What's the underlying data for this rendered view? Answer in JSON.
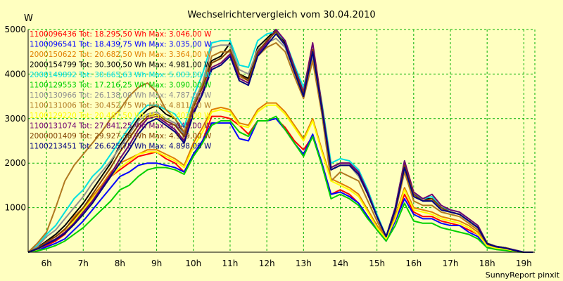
{
  "chart_data": {
    "type": "line",
    "title": "Wechselrichtervergleich vom 30.04.2010",
    "ylabel": "W",
    "xlabel": "",
    "footer": "SunnyReport pinxit",
    "ylim": [
      0,
      5000
    ],
    "xlim": [
      5.5,
      19.3
    ],
    "yticks": [
      1000,
      2000,
      3000,
      4000,
      5000
    ],
    "xticks": [
      {
        "v": 6,
        "label": "6h"
      },
      {
        "v": 7,
        "label": "7h"
      },
      {
        "v": 8,
        "label": "8h"
      },
      {
        "v": 9,
        "label": "9h"
      },
      {
        "v": 10,
        "label": "10h"
      },
      {
        "v": 11,
        "label": "11h"
      },
      {
        "v": 12,
        "label": "12h"
      },
      {
        "v": 13,
        "label": "13h"
      },
      {
        "v": 14,
        "label": "14h"
      },
      {
        "v": 15,
        "label": "15h"
      },
      {
        "v": 16,
        "label": "16h"
      },
      {
        "v": 17,
        "label": "17h"
      },
      {
        "v": 18,
        "label": "18h"
      },
      {
        "v": 19,
        "label": "19h"
      }
    ],
    "grid": true,
    "legend_position": "top-left",
    "x": [
      5.5,
      5.75,
      6.0,
      6.25,
      6.5,
      6.75,
      7.0,
      7.25,
      7.5,
      7.75,
      8.0,
      8.25,
      8.5,
      8.75,
      9.0,
      9.25,
      9.5,
      9.75,
      10.0,
      10.25,
      10.5,
      10.75,
      11.0,
      11.25,
      11.5,
      11.75,
      12.0,
      12.25,
      12.5,
      12.75,
      13.0,
      13.25,
      13.5,
      13.75,
      14.0,
      14.25,
      14.5,
      14.75,
      15.0,
      15.25,
      15.5,
      15.75,
      16.0,
      16.25,
      16.5,
      16.75,
      17.0,
      17.25,
      17.5,
      17.75,
      18.0,
      18.25,
      18.5,
      18.75,
      19.0,
      19.25
    ],
    "series": [
      {
        "name": "1100096436 Tot: 18.295,50 Wh Max: 3.046,00 W",
        "color": "#ff0000",
        "values": [
          0,
          50,
          150,
          250,
          400,
          700,
          950,
          1200,
          1450,
          1700,
          1850,
          2000,
          2150,
          2200,
          2250,
          2100,
          2000,
          1800,
          2200,
          2500,
          3050,
          3050,
          3000,
          2850,
          2650,
          2950,
          2950,
          3000,
          2800,
          2500,
          2300,
          2600,
          2000,
          1300,
          1400,
          1300,
          1100,
          800,
          500,
          300,
          700,
          1300,
          900,
          800,
          800,
          700,
          650,
          600,
          500,
          400,
          150,
          100,
          80,
          30,
          0,
          0
        ]
      },
      {
        "name": "1100096541 Tot: 18.439,75 Wh Max: 3.035,00 W",
        "color": "#0000ff",
        "values": [
          0,
          40,
          120,
          200,
          300,
          500,
          700,
          950,
          1200,
          1450,
          1700,
          1800,
          1950,
          2000,
          2000,
          1950,
          1900,
          1800,
          2200,
          2500,
          2900,
          2900,
          2900,
          2550,
          2500,
          2950,
          2950,
          3000,
          2750,
          2450,
          2200,
          2650,
          2000,
          1300,
          1350,
          1250,
          1100,
          800,
          500,
          250,
          700,
          1200,
          850,
          750,
          750,
          650,
          600,
          600,
          450,
          350,
          120,
          80,
          50,
          20,
          0,
          0
        ]
      },
      {
        "name": "2000150622 Tot: 20.682,50 Wh Max: 3.364,00 W",
        "color": "#e08000",
        "values": [
          0,
          80,
          250,
          350,
          500,
          800,
          1000,
          1250,
          1500,
          1800,
          2000,
          2100,
          2200,
          2300,
          2300,
          2200,
          2100,
          1950,
          2450,
          2800,
          3200,
          3250,
          3200,
          2900,
          2850,
          3200,
          3350,
          3350,
          3150,
          2850,
          2550,
          3000,
          2300,
          1650,
          1550,
          1450,
          1300,
          950,
          600,
          300,
          800,
          1450,
          1000,
          950,
          900,
          800,
          750,
          700,
          600,
          450,
          150,
          100,
          80,
          30,
          0,
          0
        ]
      },
      {
        "name": "2000154799 Tot: 30.300,50 Wh Max: 4.981,00 W",
        "color": "#000000",
        "values": [
          0,
          100,
          250,
          400,
          600,
          850,
          1100,
          1400,
          1700,
          2000,
          2400,
          2700,
          3000,
          3200,
          3300,
          3100,
          3000,
          2650,
          3300,
          3800,
          4300,
          4400,
          4700,
          4000,
          3900,
          4600,
          4800,
          5000,
          4700,
          4100,
          3600,
          4500,
          3300,
          1900,
          2000,
          2000,
          1800,
          1350,
          800,
          350,
          1000,
          2000,
          1300,
          1200,
          1200,
          1000,
          900,
          850,
          700,
          550,
          200,
          130,
          100,
          50,
          0,
          0
        ]
      },
      {
        "name": "2000149892 Tot: 30.665,63 Wh Max: 5.003,00 W",
        "color": "#00e0e0",
        "values": [
          0,
          150,
          400,
          600,
          900,
          1200,
          1400,
          1700,
          1900,
          2200,
          2500,
          2800,
          3100,
          3300,
          3300,
          3200,
          3100,
          2800,
          3500,
          4000,
          4700,
          4750,
          4750,
          4200,
          4150,
          4750,
          4900,
          4950,
          4750,
          4200,
          3700,
          4550,
          3350,
          2000,
          2100,
          2050,
          1850,
          1400,
          850,
          350,
          1000,
          2050,
          1300,
          1200,
          1250,
          1000,
          950,
          900,
          750,
          600,
          200,
          130,
          100,
          50,
          0,
          0
        ]
      },
      {
        "name": "1100129553 Tot: 17.216,25 Wh Max: 3.090,00 W",
        "color": "#00d000",
        "values": [
          0,
          30,
          80,
          150,
          250,
          400,
          550,
          750,
          950,
          1150,
          1400,
          1500,
          1700,
          1850,
          1900,
          1900,
          1850,
          1750,
          2150,
          2450,
          2850,
          2950,
          2950,
          2700,
          2600,
          2950,
          2950,
          3050,
          2750,
          2450,
          2150,
          2600,
          1950,
          1200,
          1300,
          1200,
          1050,
          750,
          500,
          250,
          600,
          1100,
          700,
          650,
          650,
          550,
          500,
          450,
          400,
          300,
          100,
          60,
          40,
          10,
          0,
          0
        ]
      },
      {
        "name": "1100130966 Tot: 26.138,00 Wh Max: 4.787,00 W",
        "color": "#909090",
        "values": [
          0,
          120,
          350,
          500,
          750,
          1000,
          1250,
          1550,
          1800,
          2050,
          2350,
          2650,
          2950,
          3100,
          3150,
          3000,
          2900,
          2650,
          3350,
          3800,
          4600,
          4650,
          4650,
          4100,
          4000,
          4550,
          4700,
          4800,
          4600,
          4050,
          3550,
          4400,
          3200,
          1850,
          1950,
          1950,
          1700,
          1300,
          800,
          350,
          950,
          1900,
          1250,
          1150,
          1150,
          950,
          900,
          850,
          700,
          550,
          200,
          120,
          100,
          40,
          0,
          0
        ]
      },
      {
        "name": "1100131006 Tot: 30.452,75 Wh Max: 4.811,00 W",
        "color": "#b07820",
        "values": [
          0,
          200,
          450,
          1000,
          1600,
          1950,
          2200,
          2450,
          2700,
          3000,
          3200,
          3500,
          3700,
          3800,
          3600,
          3200,
          3000,
          2700,
          3300,
          3750,
          4400,
          4500,
          4500,
          3950,
          3850,
          4400,
          4600,
          4700,
          4500,
          3950,
          3450,
          4300,
          3100,
          1600,
          1800,
          1700,
          1600,
          1150,
          700,
          300,
          900,
          1800,
          1150,
          1050,
          1050,
          900,
          850,
          800,
          650,
          500,
          180,
          110,
          90,
          40,
          0,
          0
        ]
      },
      {
        "name": "1100129220 Tot: 20.487,50 Wh Max: 3.402,00 W",
        "color": "#ffff00",
        "values": [
          0,
          60,
          180,
          300,
          450,
          700,
          950,
          1200,
          1450,
          1700,
          1900,
          2050,
          2200,
          2250,
          2250,
          2150,
          2050,
          1900,
          2350,
          2700,
          3150,
          3200,
          3150,
          2850,
          2800,
          3150,
          3300,
          3300,
          3100,
          2800,
          2500,
          2950,
          2250,
          1600,
          1500,
          1400,
          1250,
          900,
          550,
          300,
          750,
          1400,
          950,
          900,
          850,
          750,
          700,
          650,
          550,
          400,
          140,
          90,
          70,
          30,
          0,
          0
        ]
      },
      {
        "name": "1100131074 Tot: 27.841,25 Wh Max: 5.045,00 W",
        "color": "#700070",
        "values": [
          0,
          80,
          200,
          300,
          450,
          650,
          900,
          1150,
          1450,
          1750,
          2100,
          2400,
          2750,
          3000,
          3050,
          2900,
          2750,
          2500,
          3150,
          3600,
          4150,
          4250,
          4450,
          3900,
          3800,
          4450,
          4700,
          5000,
          4750,
          4150,
          3600,
          4700,
          3300,
          1900,
          2000,
          2000,
          1800,
          1350,
          800,
          350,
          1000,
          2050,
          1350,
          1200,
          1300,
          1050,
          950,
          900,
          750,
          600,
          200,
          130,
          100,
          50,
          0,
          0
        ]
      },
      {
        "name": "2000001409 Tot: 29.927,38 Wh Max: 4.919,00 W",
        "color": "#804000",
        "values": [
          0,
          90,
          230,
          350,
          520,
          750,
          1000,
          1300,
          1600,
          1900,
          2250,
          2550,
          2850,
          3050,
          3100,
          2950,
          2850,
          2600,
          3250,
          3700,
          4250,
          4350,
          4550,
          4000,
          3850,
          4500,
          4750,
          4950,
          4650,
          4100,
          3550,
          4550,
          3250,
          1850,
          1950,
          1950,
          1750,
          1300,
          800,
          350,
          950,
          1950,
          1300,
          1150,
          1200,
          1000,
          900,
          850,
          700,
          550,
          200,
          120,
          100,
          40,
          0,
          0
        ]
      },
      {
        "name": "1100213451 Tot: 26.625,75 Wh Max: 4.898,00 W",
        "color": "#000080",
        "values": [
          0,
          70,
          180,
          280,
          420,
          620,
          850,
          1100,
          1400,
          1700,
          2000,
          2300,
          2650,
          2900,
          3000,
          2850,
          2700,
          2450,
          3100,
          3550,
          4100,
          4200,
          4400,
          3850,
          3750,
          4400,
          4650,
          4900,
          4650,
          4050,
          3500,
          4500,
          3200,
          1850,
          1950,
          1950,
          1750,
          1300,
          800,
          350,
          950,
          1900,
          1250,
          1150,
          1150,
          950,
          900,
          850,
          700,
          550,
          190,
          120,
          90,
          40,
          0,
          0
        ]
      }
    ]
  }
}
